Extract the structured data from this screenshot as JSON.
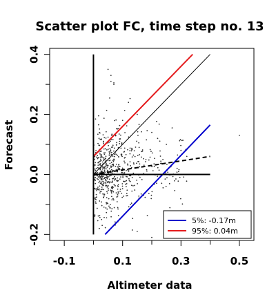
{
  "chart_data": {
    "type": "scatter",
    "title": "Scatter plot FC, time step no. 13",
    "xlabel": "Altimeter data",
    "ylabel": "Forecast",
    "xlim": [
      -0.15,
      0.55
    ],
    "ylim": [
      -0.22,
      0.42
    ],
    "xticks": [
      -0.1,
      0.1,
      0.3,
      0.5
    ],
    "xtick_labels": [
      "-0.1",
      "0.1",
      "0.3",
      "0.5"
    ],
    "yticks": [
      -0.2,
      0.0,
      0.2,
      0.4
    ],
    "ytick_labels": [
      "-0.2",
      "0.0",
      "0.2",
      "0.4"
    ],
    "grid": false,
    "legend_position": "bottom-right",
    "legend": [
      {
        "label": "5%: -0.17m",
        "color": "#0000cc"
      },
      {
        "label": "95%:  0.04m",
        "color": "#e41a1c"
      }
    ],
    "lines": {
      "identity": {
        "x": [
          0.0,
          0.4
        ],
        "y": [
          0.0,
          0.4
        ],
        "color": "#000000",
        "style": "solid-thin"
      },
      "upper_95": {
        "x": [
          0.0,
          0.34
        ],
        "y": [
          0.06,
          0.4
        ],
        "color": "#e41a1c",
        "style": "solid"
      },
      "lower_5": {
        "x": [
          0.04,
          0.4
        ],
        "y": [
          -0.2,
          0.165
        ],
        "color": "#0000cc",
        "style": "solid"
      },
      "regression": {
        "x": [
          0.0,
          0.4
        ],
        "y": [
          0.0,
          0.06
        ],
        "color": "#000000",
        "style": "dashed"
      },
      "zero_horizontal": {
        "x": [
          0.0,
          0.4
        ],
        "y": [
          0.0,
          0.0
        ],
        "color": "#000000",
        "style": "solid-thick"
      },
      "zero_vertical": {
        "x": [
          0.0,
          0.0
        ],
        "y": [
          -0.2,
          0.4
        ],
        "color": "#000000",
        "style": "solid-thick"
      }
    },
    "points": {
      "color": "#333333",
      "approx_count": 650,
      "x_center": 0.08,
      "x_spread": 0.07,
      "y_center": 0.0,
      "y_spread": 0.07,
      "samples": [
        [
          0.05,
          0.35
        ],
        [
          0.06,
          0.33
        ],
        [
          0.07,
          0.3
        ],
        [
          0.06,
          0.31
        ],
        [
          0.07,
          0.305
        ],
        [
          0.12,
          0.24
        ],
        [
          0.2,
          0.14
        ],
        [
          0.25,
          0.1
        ],
        [
          0.3,
          0.08
        ],
        [
          0.32,
          0.06
        ],
        [
          0.5,
          0.13
        ],
        [
          0.2,
          -0.21
        ],
        [
          0.25,
          -0.17
        ],
        [
          0.3,
          -0.16
        ],
        [
          0.15,
          -0.19
        ],
        [
          0.02,
          -0.18
        ],
        [
          0.03,
          -0.17
        ],
        [
          0.1,
          0.18
        ],
        [
          0.15,
          0.2
        ],
        [
          0.22,
          0.12
        ]
      ]
    }
  }
}
